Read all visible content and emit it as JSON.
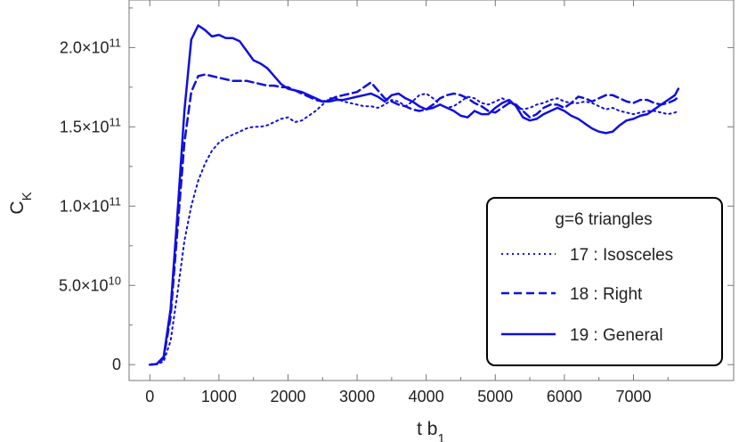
{
  "chart_data": {
    "type": "line",
    "title": "",
    "xlabel": "t b",
    "xlabel_sub": "1",
    "ylabel": "C",
    "ylabel_sub": "K",
    "xlim": [
      -300,
      8450
    ],
    "ylim": [
      -10000000000.0,
      230000000000.0
    ],
    "x_ticks": [
      0,
      1000,
      2000,
      3000,
      4000,
      5000,
      6000,
      7000
    ],
    "x_tick_labels": [
      "0",
      "1000",
      "2000",
      "3000",
      "4000",
      "5000",
      "6000",
      "7000"
    ],
    "y_ticks": [
      0,
      50000000000.0,
      100000000000.0,
      150000000000.0,
      200000000000.0
    ],
    "y_tick_labels": [
      {
        "mantissa": "0",
        "exp": ""
      },
      {
        "mantissa": "5.0",
        "exp": "10"
      },
      {
        "mantissa": "1.0",
        "exp": "11"
      },
      {
        "mantissa": "1.5",
        "exp": "11"
      },
      {
        "mantissa": "2.0",
        "exp": "11"
      }
    ],
    "times_sign": "×10",
    "color": "#1010dd",
    "grid": false,
    "legend": {
      "title": "g=6 triangles",
      "placement": "bottom-right",
      "entries": [
        {
          "label": "17 : Isosceles",
          "style": "dotted"
        },
        {
          "label": "18 : Right",
          "style": "dashed"
        },
        {
          "label": "19 : General",
          "style": "solid"
        }
      ]
    },
    "series": [
      {
        "name": "17 : Isosceles",
        "style": "dotted",
        "x": [
          0,
          100,
          200,
          300,
          400,
          500,
          600,
          700,
          800,
          900,
          1000,
          1100,
          1200,
          1300,
          1400,
          1500,
          1600,
          1700,
          1800,
          1900,
          2000,
          2100,
          2200,
          2300,
          2400,
          2500,
          2600,
          2700,
          2800,
          2900,
          3000,
          3100,
          3200,
          3300,
          3400,
          3500,
          3600,
          3700,
          3800,
          3900,
          4000,
          4100,
          4200,
          4300,
          4400,
          4500,
          4600,
          4700,
          4800,
          4900,
          5000,
          5100,
          5200,
          5300,
          5400,
          5500,
          5600,
          5700,
          5800,
          5900,
          6000,
          6100,
          6200,
          6300,
          6400,
          6500,
          6600,
          6700,
          6800,
          6900,
          7000,
          7100,
          7200,
          7300,
          7400,
          7500,
          7600,
          7650
        ],
        "y": [
          0,
          200000000.0,
          2000000000.0,
          15000000000.0,
          45000000000.0,
          78000000000.0,
          100000000000.0,
          116000000000.0,
          127000000000.0,
          135000000000.0,
          140000000000.0,
          143000000000.0,
          145000000000.0,
          147000000000.0,
          149000000000.0,
          150000000000.0,
          150000000000.0,
          151000000000.0,
          153000000000.0,
          155000000000.0,
          156000000000.0,
          153000000000.0,
          154000000000.0,
          157000000000.0,
          160000000000.0,
          164000000000.0,
          168000000000.0,
          168000000000.0,
          166000000000.0,
          165000000000.0,
          164000000000.0,
          163000000000.0,
          163000000000.0,
          162000000000.0,
          164000000000.0,
          167000000000.0,
          166000000000.0,
          163000000000.0,
          166000000000.0,
          170000000000.0,
          171000000000.0,
          168000000000.0,
          164000000000.0,
          162000000000.0,
          163000000000.0,
          166000000000.0,
          169000000000.0,
          168000000000.0,
          165000000000.0,
          164000000000.0,
          166000000000.0,
          168000000000.0,
          166000000000.0,
          163000000000.0,
          161000000000.0,
          162000000000.0,
          164000000000.0,
          165000000000.0,
          167000000000.0,
          168000000000.0,
          166000000000.0,
          165000000000.0,
          165000000000.0,
          166000000000.0,
          165000000000.0,
          163000000000.0,
          161000000000.0,
          162000000000.0,
          160000000000.0,
          159000000000.0,
          158000000000.0,
          159000000000.0,
          160000000000.0,
          160000000000.0,
          159000000000.0,
          158000000000.0,
          159000000000.0,
          160000000000.0
        ]
      },
      {
        "name": "18 : Right",
        "style": "dashed",
        "x": [
          0,
          100,
          200,
          300,
          400,
          500,
          600,
          700,
          800,
          900,
          1000,
          1100,
          1200,
          1300,
          1400,
          1500,
          1600,
          1700,
          1800,
          1900,
          2000,
          2100,
          2200,
          2300,
          2400,
          2500,
          2600,
          2700,
          2800,
          2900,
          3000,
          3100,
          3200,
          3300,
          3400,
          3500,
          3600,
          3700,
          3800,
          3900,
          4000,
          4100,
          4200,
          4300,
          4400,
          4500,
          4600,
          4700,
          4800,
          4900,
          5000,
          5100,
          5200,
          5300,
          5400,
          5500,
          5600,
          5700,
          5800,
          5900,
          6000,
          6100,
          6200,
          6300,
          6400,
          6500,
          6600,
          6700,
          6800,
          6900,
          7000,
          7100,
          7200,
          7300,
          7400,
          7500,
          7600,
          7650
        ],
        "y": [
          0,
          400000000.0,
          4000000000.0,
          30000000000.0,
          85000000000.0,
          140000000000.0,
          172000000000.0,
          182000000000.0,
          183000000000.0,
          182000000000.0,
          181000000000.0,
          180000000000.0,
          179000000000.0,
          179000000000.0,
          179000000000.0,
          178000000000.0,
          177000000000.0,
          176000000000.0,
          176000000000.0,
          175000000000.0,
          175000000000.0,
          173000000000.0,
          171000000000.0,
          169000000000.0,
          167000000000.0,
          166000000000.0,
          167000000000.0,
          169000000000.0,
          170000000000.0,
          171000000000.0,
          172000000000.0,
          175000000000.0,
          178000000000.0,
          173000000000.0,
          168000000000.0,
          166000000000.0,
          164000000000.0,
          163000000000.0,
          161000000000.0,
          160000000000.0,
          161000000000.0,
          164000000000.0,
          168000000000.0,
          170000000000.0,
          171000000000.0,
          170000000000.0,
          168000000000.0,
          165000000000.0,
          163000000000.0,
          160000000000.0,
          159000000000.0,
          162000000000.0,
          165000000000.0,
          164000000000.0,
          160000000000.0,
          156000000000.0,
          158000000000.0,
          162000000000.0,
          164000000000.0,
          164000000000.0,
          162000000000.0,
          165000000000.0,
          169000000000.0,
          168000000000.0,
          166000000000.0,
          168000000000.0,
          170000000000.0,
          170000000000.0,
          168000000000.0,
          166000000000.0,
          165000000000.0,
          167000000000.0,
          167000000000.0,
          165000000000.0,
          164000000000.0,
          165000000000.0,
          167000000000.0,
          169000000000.0
        ]
      },
      {
        "name": "19 : General",
        "style": "solid",
        "x": [
          0,
          100,
          200,
          300,
          400,
          500,
          600,
          700,
          800,
          900,
          1000,
          1100,
          1200,
          1300,
          1400,
          1500,
          1600,
          1700,
          1800,
          1900,
          2000,
          2100,
          2200,
          2300,
          2400,
          2500,
          2600,
          2700,
          2800,
          2900,
          3000,
          3100,
          3200,
          3300,
          3400,
          3500,
          3600,
          3700,
          3800,
          3900,
          4000,
          4100,
          4200,
          4300,
          4400,
          4500,
          4600,
          4700,
          4800,
          4900,
          5000,
          5100,
          5200,
          5300,
          5400,
          5500,
          5600,
          5700,
          5800,
          5900,
          6000,
          6100,
          6200,
          6300,
          6400,
          6500,
          6600,
          6700,
          6800,
          6900,
          7000,
          7100,
          7200,
          7300,
          7400,
          7500,
          7600,
          7650
        ],
        "y": [
          0,
          400000000.0,
          5000000000.0,
          35000000000.0,
          95000000000.0,
          160000000000.0,
          205000000000.0,
          214000000000.0,
          211000000000.0,
          207000000000.0,
          208000000000.0,
          206000000000.0,
          206000000000.0,
          204000000000.0,
          198000000000.0,
          192000000000.0,
          190000000000.0,
          187000000000.0,
          182000000000.0,
          177000000000.0,
          174000000000.0,
          173000000000.0,
          172000000000.0,
          170000000000.0,
          168000000000.0,
          166000000000.0,
          166000000000.0,
          167000000000.0,
          167000000000.0,
          168000000000.0,
          169000000000.0,
          170000000000.0,
          171000000000.0,
          169000000000.0,
          166000000000.0,
          170000000000.0,
          171000000000.0,
          168000000000.0,
          166000000000.0,
          163000000000.0,
          161000000000.0,
          162000000000.0,
          164000000000.0,
          162000000000.0,
          160000000000.0,
          157000000000.0,
          156000000000.0,
          160000000000.0,
          158000000000.0,
          158000000000.0,
          162000000000.0,
          165000000000.0,
          167000000000.0,
          163000000000.0,
          156000000000.0,
          154000000000.0,
          155000000000.0,
          158000000000.0,
          160000000000.0,
          162000000000.0,
          160000000000.0,
          157000000000.0,
          155000000000.0,
          152000000000.0,
          149000000000.0,
          147000000000.0,
          146000000000.0,
          147000000000.0,
          151000000000.0,
          154000000000.0,
          155000000000.0,
          157000000000.0,
          158000000000.0,
          161000000000.0,
          164000000000.0,
          167000000000.0,
          170000000000.0,
          174000000000.0
        ]
      }
    ]
  }
}
